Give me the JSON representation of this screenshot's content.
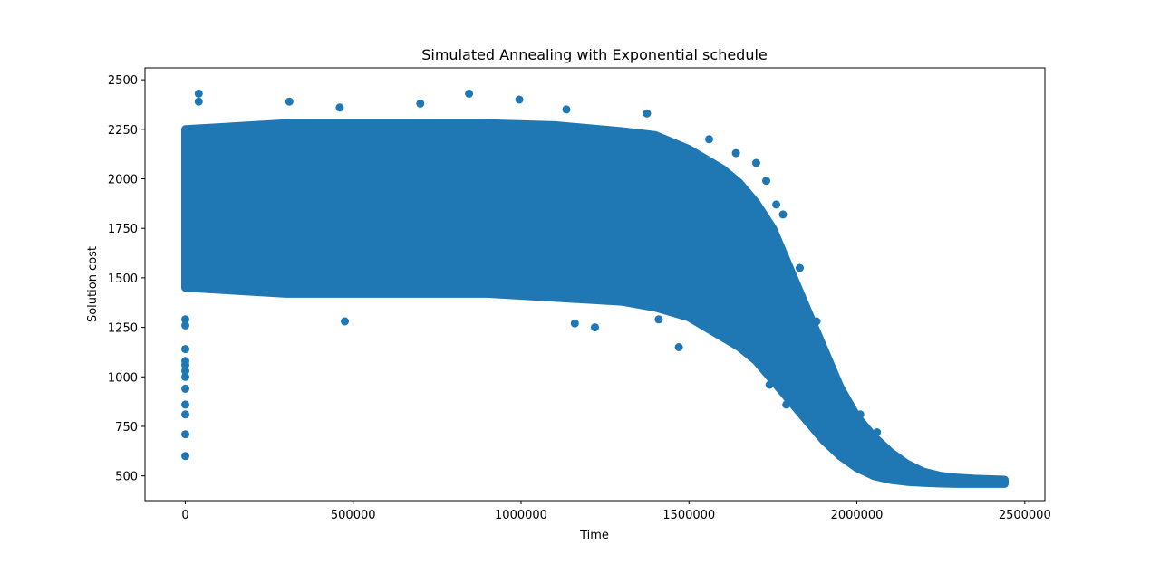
{
  "chart_data": {
    "type": "scatter",
    "title": "Simulated Annealing with Exponential schedule",
    "xlabel": "Time",
    "ylabel": "Solution cost",
    "xlim": [
      -120000,
      2560000
    ],
    "ylim": [
      375,
      2560
    ],
    "xticks": [
      0,
      500000,
      1000000,
      1500000,
      2000000,
      2500000
    ],
    "xtick_labels": [
      "0",
      "500000",
      "1000000",
      "1500000",
      "2000000",
      "2500000"
    ],
    "yticks": [
      500,
      750,
      1000,
      1250,
      1500,
      1750,
      2000,
      2250,
      2500
    ],
    "ytick_labels": [
      "500",
      "750",
      "1000",
      "1250",
      "1500",
      "1750",
      "2000",
      "2250",
      "2500"
    ],
    "grid": false,
    "series_color": "#1f77b4",
    "band": {
      "x": [
        0,
        300000,
        600000,
        900000,
        1100000,
        1300000,
        1400000,
        1500000,
        1550000,
        1600000,
        1650000,
        1700000,
        1750000,
        1800000,
        1850000,
        1900000,
        1950000,
        2000000,
        2050000,
        2100000,
        2150000,
        2200000,
        2250000,
        2300000,
        2350000,
        2440000
      ],
      "low": [
        1450,
        1420,
        1420,
        1420,
        1400,
        1380,
        1350,
        1300,
        1250,
        1200,
        1150,
        1080,
        980,
        880,
        780,
        680,
        600,
        540,
        500,
        480,
        470,
        465,
        462,
        460,
        460,
        460
      ],
      "high": [
        2250,
        2280,
        2280,
        2280,
        2270,
        2240,
        2220,
        2150,
        2100,
        2050,
        1980,
        1880,
        1750,
        1550,
        1350,
        1150,
        950,
        800,
        700,
        620,
        560,
        520,
        500,
        490,
        485,
        480
      ]
    },
    "outliers": [
      {
        "x": 0,
        "y": 600
      },
      {
        "x": 0,
        "y": 710
      },
      {
        "x": 0,
        "y": 810
      },
      {
        "x": 0,
        "y": 860
      },
      {
        "x": 0,
        "y": 940
      },
      {
        "x": 0,
        "y": 1000
      },
      {
        "x": 0,
        "y": 1030
      },
      {
        "x": 0,
        "y": 1060
      },
      {
        "x": 0,
        "y": 1080
      },
      {
        "x": 0,
        "y": 1140
      },
      {
        "x": 0,
        "y": 1260
      },
      {
        "x": 0,
        "y": 1290
      },
      {
        "x": 40000,
        "y": 2430
      },
      {
        "x": 40000,
        "y": 2390
      },
      {
        "x": 310000,
        "y": 2390
      },
      {
        "x": 460000,
        "y": 2360
      },
      {
        "x": 700000,
        "y": 2380
      },
      {
        "x": 845000,
        "y": 2430
      },
      {
        "x": 995000,
        "y": 2400
      },
      {
        "x": 1135000,
        "y": 2350
      },
      {
        "x": 1375000,
        "y": 2330
      },
      {
        "x": 475000,
        "y": 1280
      },
      {
        "x": 1160000,
        "y": 1270
      },
      {
        "x": 1220000,
        "y": 1250
      },
      {
        "x": 1470000,
        "y": 1150
      },
      {
        "x": 1560000,
        "y": 2200
      },
      {
        "x": 1640000,
        "y": 2130
      },
      {
        "x": 1700000,
        "y": 2080
      },
      {
        "x": 1730000,
        "y": 1990
      },
      {
        "x": 1760000,
        "y": 1870
      },
      {
        "x": 1780000,
        "y": 1820
      },
      {
        "x": 1830000,
        "y": 1550
      },
      {
        "x": 1880000,
        "y": 1280
      },
      {
        "x": 1920000,
        "y": 1050
      },
      {
        "x": 2010000,
        "y": 810
      },
      {
        "x": 2060000,
        "y": 720
      },
      {
        "x": 1410000,
        "y": 1290
      },
      {
        "x": 1740000,
        "y": 960
      },
      {
        "x": 1790000,
        "y": 860
      },
      {
        "x": 2030000,
        "y": 530
      },
      {
        "x": 2440000,
        "y": 465
      }
    ]
  }
}
